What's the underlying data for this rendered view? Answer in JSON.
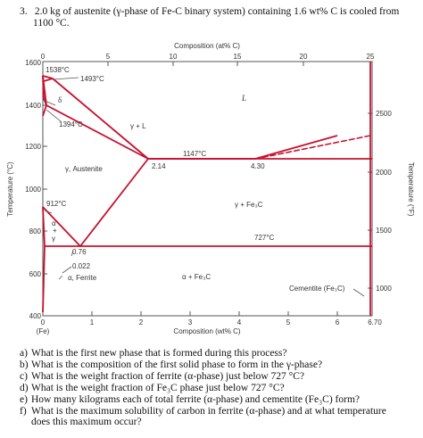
{
  "question": {
    "number": "3.",
    "line1": "2.0 kg of austenite (γ-phase of Fe-C binary system) containing 1.6 wt% C is cooled from",
    "line2": "1100 °C."
  },
  "diagram": {
    "top_axis_title": "Composition (at% C)",
    "top_ticks": [
      "0",
      "5",
      "10",
      "15",
      "20",
      "25"
    ],
    "bottom_axis_title": "Composition (wt% C)",
    "bottom_ticks": [
      "0",
      "1",
      "2",
      "3",
      "4",
      "5",
      "6",
      "6.70"
    ],
    "bottom_origin_label": "(Fe)",
    "left_axis_title": "Temperature (°C)",
    "left_ticks": [
      "1600",
      "1400",
      "1200",
      "1000",
      "800",
      "600",
      "400"
    ],
    "right_axis_title": "Temperature (°F)",
    "right_ticks": [
      "2500",
      "2000",
      "1500",
      "1000"
    ],
    "labels": {
      "t1538": "1538°C",
      "t1493": "1493°C",
      "delta": "δ",
      "t1394": "1394°C",
      "gamma_plus_L": "γ + L",
      "L": "L",
      "t1147": "1147°C",
      "c214": "2.14",
      "c430": "4.30",
      "austenite": "γ, Austenite",
      "t912": "912°C",
      "gamma_fe3c": "γ + Fe₃C",
      "alpha_gamma_1": "α",
      "alpha_gamma_2": "+",
      "alpha_gamma_3": "γ",
      "t727": "727°C",
      "c076": "0.76",
      "c0022": "0.022",
      "ferrite": "α, Ferrite",
      "alpha_fe3c": "α + Fe₃C",
      "cementite": "Cementite (Fe₃C)"
    },
    "colors": {
      "phase_line": "#c8102e",
      "axis": "#555555"
    }
  },
  "subquestions": [
    {
      "letter": "a)",
      "text": "What is the first new phase that is formed during this process?"
    },
    {
      "letter": "b)",
      "text": "What is the composition of the first solid phase to form in the γ-phase?"
    },
    {
      "letter": "c)",
      "text": "What is the weight fraction of ferrite (α-phase) just below 727 °C?"
    },
    {
      "letter": "d)",
      "text": "What is the weight fraction of Fe₃C phase just below 727 °C?"
    },
    {
      "letter": "e)",
      "text": "How many kilograms each of total ferrite (α-phase) and cementite (Fe₃C) form?"
    },
    {
      "letter": "f)",
      "text": "What is the maximum solubility of carbon in ferrite (α-phase) and at what temperature"
    },
    {
      "letter": "",
      "text": "does this maximum occur?"
    }
  ]
}
